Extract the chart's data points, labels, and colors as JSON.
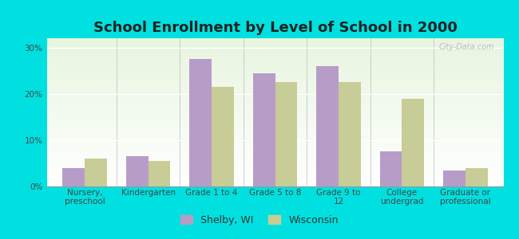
{
  "title": "School Enrollment by Level of School in 2000",
  "categories": [
    "Nursery,\npreschool",
    "Kindergarten",
    "Grade 1 to 4",
    "Grade 5 to 8",
    "Grade 9 to\n12",
    "College\nundergrad",
    "Graduate or\nprofessional"
  ],
  "shelby_values": [
    4.0,
    6.5,
    27.5,
    24.5,
    26.0,
    7.5,
    3.5
  ],
  "wisconsin_values": [
    6.0,
    5.5,
    21.5,
    22.5,
    22.5,
    19.0,
    4.0
  ],
  "shelby_color": "#b89cc8",
  "wisconsin_color": "#c8cc96",
  "background_color": "#00e0e0",
  "ylim": [
    0,
    32
  ],
  "yticks": [
    0,
    10,
    20,
    30
  ],
  "ytick_labels": [
    "0%",
    "10%",
    "20%",
    "30%"
  ],
  "bar_width": 0.35,
  "legend_shelby": "Shelby, WI",
  "legend_wisconsin": "Wisconsin",
  "title_fontsize": 13,
  "tick_fontsize": 7.5,
  "legend_fontsize": 9
}
